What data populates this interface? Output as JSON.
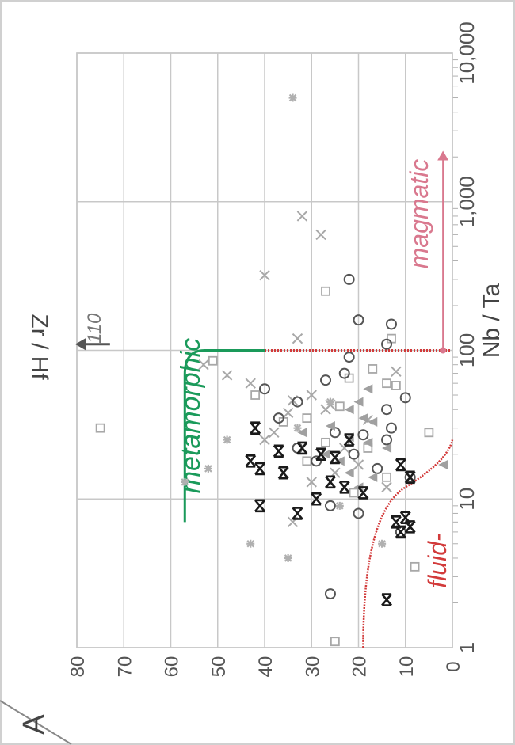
{
  "chart_data": {
    "type": "scatter",
    "panel_label": "A",
    "xlabel": "Nb / Ta",
    "ylabel": "Zr / Hf",
    "x_scale": "log",
    "xlim": [
      1,
      10000
    ],
    "ylim": [
      0,
      80
    ],
    "x_ticks": [
      "1",
      "10",
      "100",
      "1,000",
      "10,000"
    ],
    "y_ticks": [
      "0",
      "10",
      "20",
      "30",
      "40",
      "50",
      "60",
      "70",
      "80"
    ],
    "grid": true,
    "orientation_note_label": "rotated 90° counter-clockwise",
    "annotations": {
      "metamorphic": "metamorphic",
      "magmatic": "magmatic",
      "fluid": "fluid-",
      "offscale": "110"
    },
    "colors": {
      "metamorphic": "#1a9a5a",
      "fluid": "#d23a3a",
      "magmatic": "#d9788e",
      "points_light": "#a8a8a8",
      "points_dark": "#1a1a1a",
      "axis_text": "#555555",
      "grid": "#c8c8c8"
    },
    "fields": {
      "metamorphic_curve": {
        "x_start": 7,
        "y_start": 57,
        "x_end": 100,
        "y_end": 40
      },
      "magmatic_boundary": {
        "x": 100,
        "y_from": 0,
        "y_to": 40
      },
      "magmatic_arrow": {
        "x_from": 100,
        "x_to": 2200,
        "y": 2
      },
      "fluid_curve": {
        "x_start": 1,
        "y_start": 19,
        "x_end": 25,
        "y_end": 0
      },
      "offscale_arrow": {
        "x": 110,
        "y": 78
      }
    },
    "series": [
      {
        "marker": "square",
        "color": "#a8a8a8",
        "points": [
          [
            30,
            75
          ],
          [
            85,
            51
          ],
          [
            50,
            42
          ],
          [
            35,
            31
          ],
          [
            65,
            22
          ],
          [
            120,
            13
          ],
          [
            24,
            27
          ],
          [
            18,
            31
          ],
          [
            22,
            18
          ],
          [
            58,
            12
          ],
          [
            28,
            5
          ],
          [
            60,
            14
          ],
          [
            250,
            27
          ],
          [
            3.5,
            8
          ],
          [
            1.1,
            25
          ],
          [
            14,
            14
          ],
          [
            42,
            24
          ],
          [
            11,
            21
          ],
          [
            33,
            36
          ],
          [
            75,
            17
          ]
        ]
      },
      {
        "marker": "cross",
        "color": "#a8a8a8",
        "points": [
          [
            68,
            48
          ],
          [
            60,
            43
          ],
          [
            80,
            53
          ],
          [
            12,
            14
          ],
          [
            17,
            20
          ],
          [
            28,
            38
          ],
          [
            43,
            26
          ],
          [
            13,
            30
          ],
          [
            40,
            27
          ],
          [
            800,
            32
          ],
          [
            600,
            28
          ],
          [
            320,
            40
          ],
          [
            120,
            33
          ],
          [
            72,
            12
          ],
          [
            22,
            23
          ],
          [
            7,
            34
          ],
          [
            34,
            18
          ],
          [
            50,
            30
          ],
          [
            25,
            40
          ],
          [
            38,
            35
          ],
          [
            15,
            25
          ],
          [
            46,
            34
          ]
        ]
      },
      {
        "marker": "circle",
        "color": "#555555",
        "points": [
          [
            45,
            33
          ],
          [
            55,
            40
          ],
          [
            35,
            37
          ],
          [
            150,
            13
          ],
          [
            160,
            20
          ],
          [
            300,
            22
          ],
          [
            63,
            27
          ],
          [
            90,
            22
          ],
          [
            2.3,
            26
          ],
          [
            8,
            20
          ],
          [
            6,
            11
          ],
          [
            14,
            9
          ],
          [
            20,
            21
          ],
          [
            25,
            14
          ],
          [
            30,
            13
          ],
          [
            22,
            33
          ],
          [
            27,
            19
          ],
          [
            18,
            29
          ],
          [
            48,
            10
          ],
          [
            28,
            25
          ],
          [
            70,
            23
          ],
          [
            16,
            16
          ],
          [
            40,
            14
          ],
          [
            110,
            14
          ],
          [
            9,
            26
          ]
        ]
      },
      {
        "marker": "triangle",
        "color": "#a0a0a0",
        "points": [
          [
            17,
            2
          ],
          [
            22,
            14
          ],
          [
            15,
            22
          ],
          [
            20,
            27
          ],
          [
            35,
            19
          ],
          [
            14,
            17
          ],
          [
            26,
            22
          ],
          [
            31,
            26
          ],
          [
            40,
            22
          ],
          [
            55,
            18
          ],
          [
            12,
            20
          ],
          [
            18,
            24
          ],
          [
            24,
            18
          ],
          [
            28,
            32
          ],
          [
            33,
            17
          ],
          [
            45,
            20
          ]
        ]
      },
      {
        "marker": "star",
        "color": "#b0b0b0",
        "points": [
          [
            5000,
            34
          ],
          [
            16,
            52
          ],
          [
            25,
            48
          ],
          [
            5,
            43
          ],
          [
            4,
            35
          ],
          [
            5,
            15
          ],
          [
            13,
            57
          ],
          [
            9,
            24
          ],
          [
            30,
            33
          ],
          [
            45,
            26
          ]
        ]
      },
      {
        "marker": "bowtie",
        "color": "#1a1a1a",
        "points": [
          [
            9,
            41
          ],
          [
            18,
            43
          ],
          [
            15,
            36
          ],
          [
            30,
            42
          ],
          [
            16,
            41
          ],
          [
            22,
            32
          ],
          [
            13,
            26
          ],
          [
            2.1,
            14
          ],
          [
            6.5,
            9
          ],
          [
            12,
            23
          ],
          [
            20,
            28
          ],
          [
            8,
            33
          ],
          [
            11,
            19
          ],
          [
            14,
            9
          ],
          [
            17,
            11
          ],
          [
            19,
            25
          ],
          [
            25,
            22
          ],
          [
            7,
            12
          ],
          [
            7.5,
            10
          ],
          [
            6,
            11
          ],
          [
            10,
            29
          ],
          [
            21,
            37
          ]
        ]
      }
    ]
  }
}
